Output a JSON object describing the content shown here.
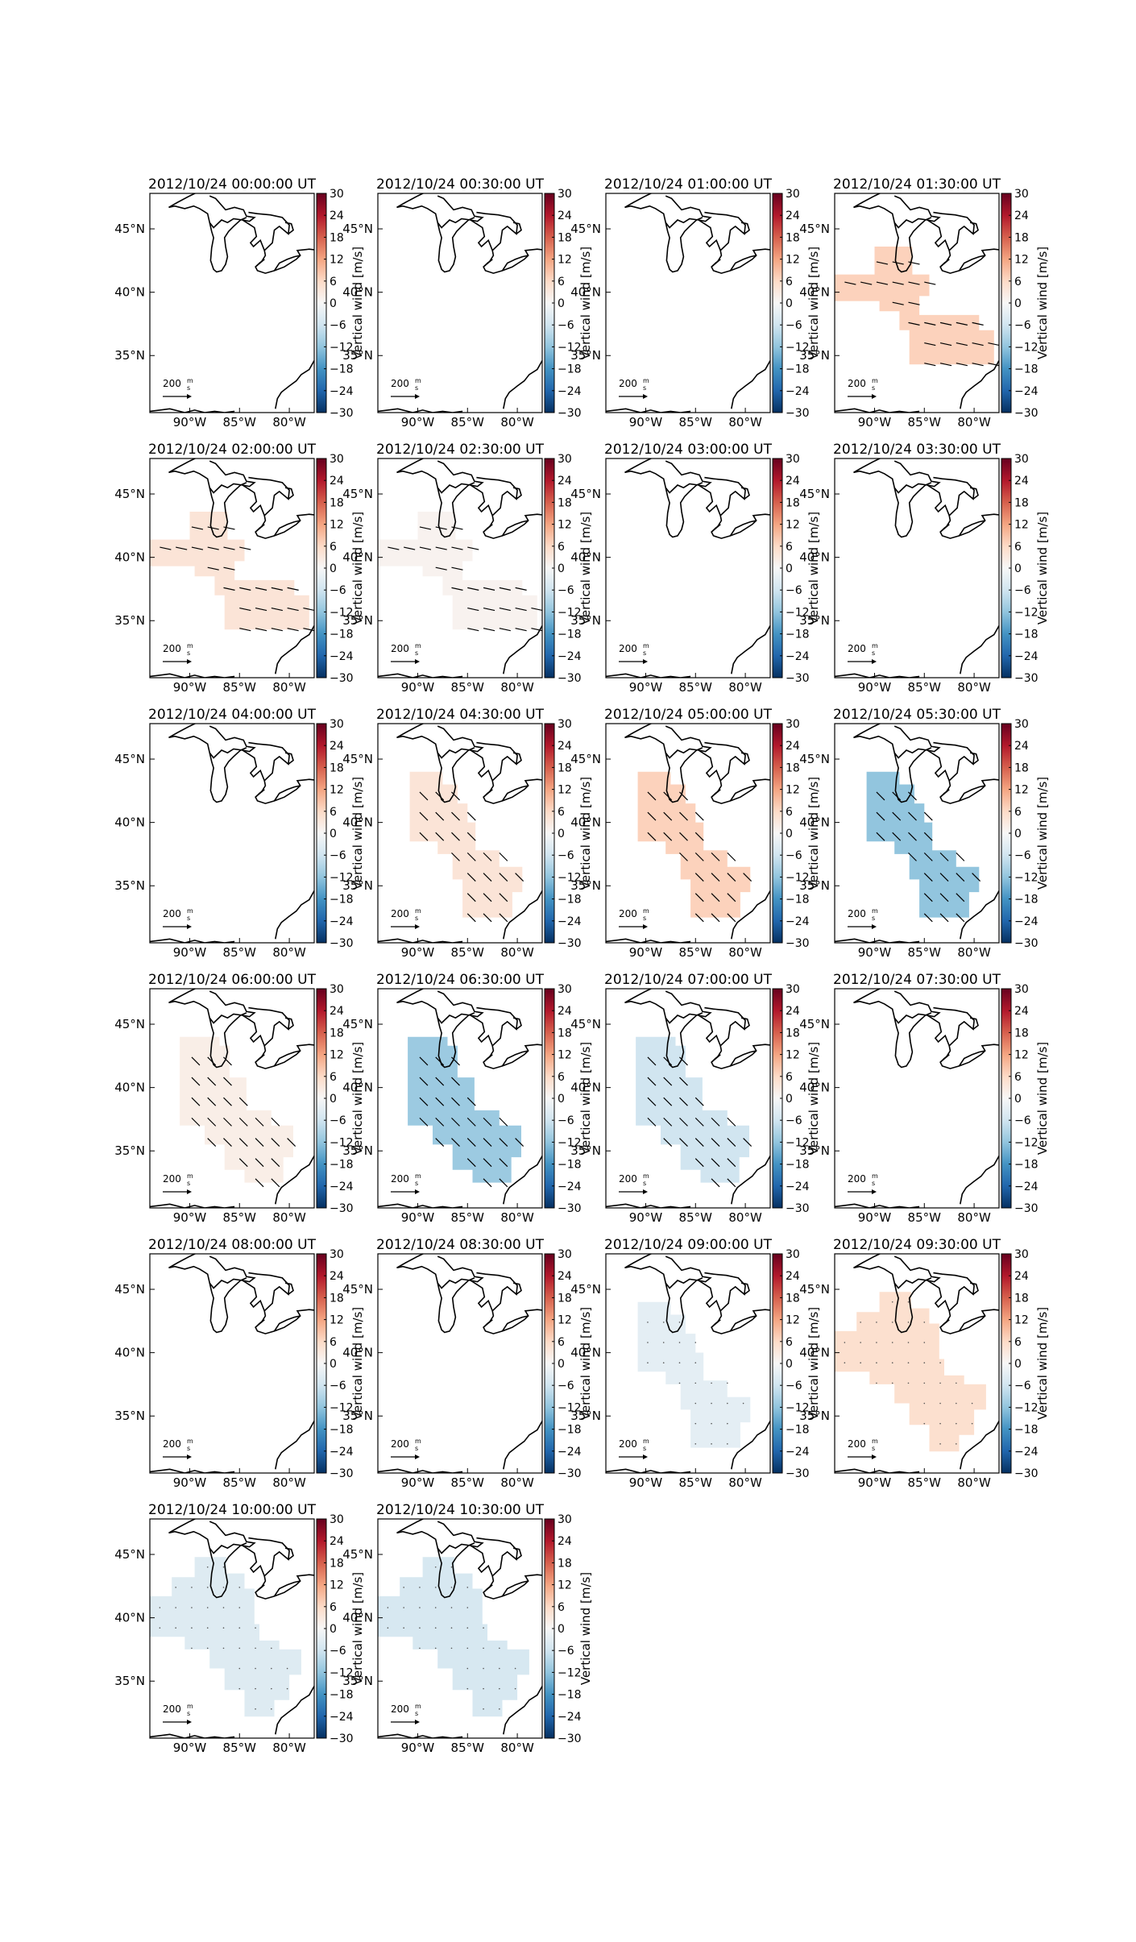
{
  "figure": {
    "colorbar_label": "Vertical wind [m/s]",
    "colorbar_ticks": [
      "30",
      "24",
      "18",
      "12",
      "6",
      "0",
      "−6",
      "−12",
      "−18",
      "−24",
      "−30"
    ],
    "colormap": [
      "#67001f",
      "#b2182b",
      "#d6604d",
      "#f4a582",
      "#fddbc7",
      "#f7f7f7",
      "#d1e5f0",
      "#92c5de",
      "#4393c3",
      "#2166ac",
      "#053061"
    ],
    "x_ticks": [
      "90°W",
      "85°W",
      "80°W"
    ],
    "y_ticks": [
      "45°N",
      "40°N",
      "35°N"
    ],
    "scale_label": "200",
    "scale_unit_num": "m",
    "scale_unit_den": "s"
  },
  "chart_data": {
    "type": "heatmap",
    "description_units": "vertical wind m/s, color scale range -30 to 30",
    "vmin": -30,
    "vmax": 30,
    "panels": [
      {
        "title": "2012/10/24 00:00:00 UT",
        "value": null,
        "region": "none",
        "vectors": false
      },
      {
        "title": "2012/10/24 00:30:00 UT",
        "value": null,
        "region": "none",
        "vectors": false
      },
      {
        "title": "2012/10/24 01:00:00 UT",
        "value": null,
        "region": "none",
        "vectors": false
      },
      {
        "title": "2012/10/24 01:30:00 UT",
        "value": 7,
        "region": "two-lobes",
        "vectors": true
      },
      {
        "title": "2012/10/24 02:00:00 UT",
        "value": 4,
        "region": "two-lobes",
        "vectors": true
      },
      {
        "title": "2012/10/24 02:30:00 UT",
        "value": 1,
        "region": "two-lobes",
        "vectors": true
      },
      {
        "title": "2012/10/24 03:00:00 UT",
        "value": null,
        "region": "none",
        "vectors": false
      },
      {
        "title": "2012/10/24 03:30:00 UT",
        "value": null,
        "region": "none",
        "vectors": false
      },
      {
        "title": "2012/10/24 04:00:00 UT",
        "value": null,
        "region": "none",
        "vectors": false
      },
      {
        "title": "2012/10/24 04:30:00 UT",
        "value": 4,
        "region": "diagonal",
        "vectors": true
      },
      {
        "title": "2012/10/24 05:00:00 UT",
        "value": 7,
        "region": "diagonal",
        "vectors": true
      },
      {
        "title": "2012/10/24 05:30:00 UT",
        "value": -12,
        "region": "diagonal",
        "vectors": true
      },
      {
        "title": "2012/10/24 06:00:00 UT",
        "value": 2,
        "region": "diagonal-wide",
        "vectors": true
      },
      {
        "title": "2012/10/24 06:30:00 UT",
        "value": -11,
        "region": "diagonal-wide",
        "vectors": true
      },
      {
        "title": "2012/10/24 07:00:00 UT",
        "value": -6,
        "region": "diagonal-wide",
        "vectors": true
      },
      {
        "title": "2012/10/24 07:30:00 UT",
        "value": null,
        "region": "none",
        "vectors": false
      },
      {
        "title": "2012/10/24 08:00:00 UT",
        "value": null,
        "region": "none",
        "vectors": false
      },
      {
        "title": "2012/10/24 08:30:00 UT",
        "value": null,
        "region": "none",
        "vectors": false
      },
      {
        "title": "2012/10/24 09:00:00 UT",
        "value": -3,
        "region": "diagonal",
        "vectors": false
      },
      {
        "title": "2012/10/24 09:30:00 UT",
        "value": 5,
        "region": "broad",
        "vectors": false
      },
      {
        "title": "2012/10/24 10:00:00 UT",
        "value": -4,
        "region": "broad",
        "vectors": false
      },
      {
        "title": "2012/10/24 10:30:00 UT",
        "value": -5,
        "region": "broad",
        "vectors": false
      }
    ]
  }
}
